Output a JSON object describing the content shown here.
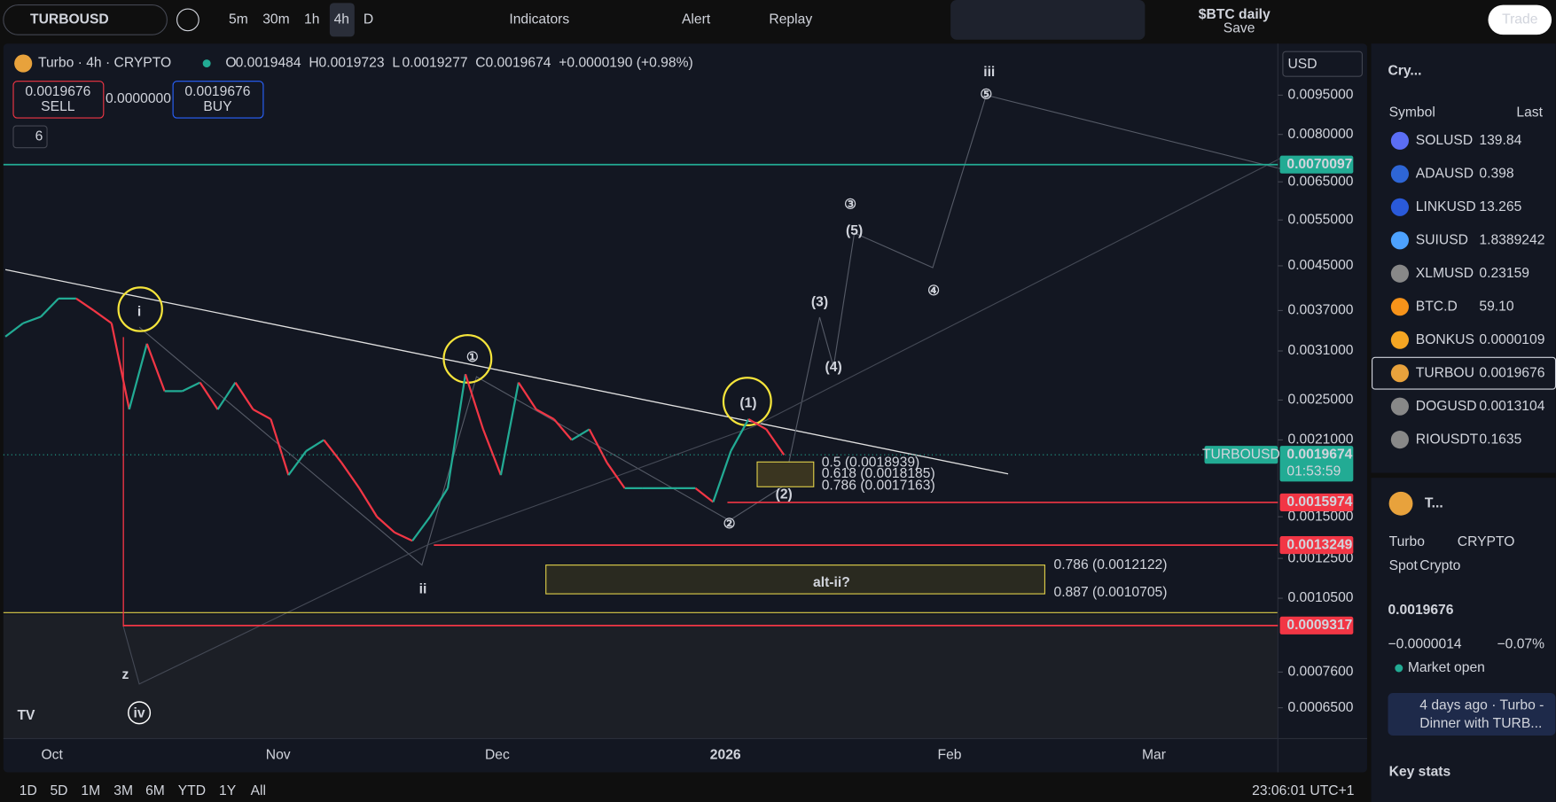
{
  "toolbar": {
    "symbol": "TURBOUSD",
    "intervals": [
      "5m",
      "30m",
      "1h",
      "4h",
      "D"
    ],
    "indicators": "Indicators",
    "alert": "Alert",
    "replay": "Replay",
    "layout": "$BTC daily",
    "save": "Save",
    "trade": "Trade"
  },
  "legend": {
    "title": "Turbo · 4h · CRYPTO",
    "ohlc": [
      {
        "label": "O",
        "value": "0.0019484"
      },
      {
        "label": "H",
        "value": "0.0019723"
      },
      {
        "label": "L",
        "value": "0.0019277"
      },
      {
        "label": "C",
        "value": "0.0019674"
      }
    ],
    "change": "+0.0000190 (+0.98%)",
    "sell": {
      "price": "0.0019676",
      "label": "SELL"
    },
    "spread": "0.0000000",
    "buy": {
      "price": "0.0019676",
      "label": "BUY"
    },
    "indicator_count": "6"
  },
  "chart": {
    "currency": "USD",
    "scale": "log",
    "ylim": [
      0.000568,
      0.01135
    ],
    "yticks": [
      {
        "value": 0.0095,
        "label": "0.0095000"
      },
      {
        "value": 0.008,
        "label": "0.0080000"
      },
      {
        "value": 0.0065,
        "label": "0.0065000"
      },
      {
        "value": 0.0055,
        "label": "0.0055000"
      },
      {
        "value": 0.0045,
        "label": "0.0045000"
      },
      {
        "value": 0.0037,
        "label": "0.0037000"
      },
      {
        "value": 0.0031,
        "label": "0.0031000"
      },
      {
        "value": 0.0025,
        "label": "0.0025000"
      },
      {
        "value": 0.0021,
        "label": "0.0021000"
      },
      {
        "value": 0.0015,
        "label": "0.0015000"
      },
      {
        "value": 0.00125,
        "label": "0.0012500"
      },
      {
        "value": 0.00105,
        "label": "0.0010500"
      },
      {
        "value": 0.00076,
        "label": "0.0007600"
      },
      {
        "value": 0.00065,
        "label": "0.0006500"
      }
    ],
    "xticks": [
      "Oct",
      "Nov",
      "Dec",
      "2026",
      "Feb",
      "Mar"
    ],
    "price_path": [
      0.0033,
      0.0035,
      0.0036,
      0.0039,
      0.0039,
      0.0037,
      0.0035,
      0.0024,
      0.0032,
      0.0026,
      0.0026,
      0.0027,
      0.0024,
      0.0027,
      0.0024,
      0.0023,
      0.0018,
      0.002,
      0.0021,
      0.0019,
      0.0017,
      0.0015,
      0.0014,
      0.00135,
      0.0015,
      0.0017,
      0.0028,
      0.0022,
      0.0018,
      0.0027,
      0.0024,
      0.0023,
      0.0021,
      0.0022,
      0.0019,
      0.0017,
      0.0017,
      0.0017,
      0.0017,
      0.0017,
      0.0016,
      0.002,
      0.0023,
      0.0022,
      0.0019674
    ],
    "levels": [
      {
        "value": 0.0070097,
        "color": "#22ab94"
      },
      {
        "value": 0.0015974,
        "color": "#f23645"
      },
      {
        "value": 0.0013249,
        "color": "#f23645"
      },
      {
        "value": 0.0009317,
        "color": "#f23645"
      }
    ],
    "last": {
      "symbol": "TURBOUSD",
      "value": 0.0019674,
      "countdown": "01:53:59"
    },
    "annotations": [
      "i",
      "①",
      "(1)",
      "ii",
      "iii",
      "⑤",
      "③",
      "(5)",
      "(3)",
      "④",
      "(4)",
      "(2)",
      "②",
      "z",
      "iv"
    ],
    "fib": [
      "0.5 (0.0018939)",
      "0.618 (0.0018185)",
      "0.786 (0.0017163)",
      "0.786 (0.0012122)",
      "0.887 (0.0010705)",
      "alt-ii?"
    ]
  },
  "bottom": {
    "ranges": [
      "1D",
      "5D",
      "1M",
      "3M",
      "6M",
      "YTD",
      "1Y",
      "All"
    ],
    "clock": "23:06:01 UTC+1"
  },
  "watchlist": {
    "title": "Cry...",
    "columns": [
      "Symbol",
      "Last"
    ],
    "rows": [
      [
        "SOLUSD",
        "139.84"
      ],
      [
        "ADAUSD",
        "0.398"
      ],
      [
        "LINKUSD",
        "13.265"
      ],
      [
        "SUIUSD",
        "1.8389242"
      ],
      [
        "XLMUSD",
        "0.23159"
      ],
      [
        "BTC.D",
        "59.10"
      ],
      [
        "BONKUS",
        "0.0000109"
      ],
      [
        "TURBOU",
        "0.0019676"
      ],
      [
        "DOGUSD",
        "0.0013104"
      ],
      [
        "RIOUSDT",
        "0.1635"
      ]
    ]
  },
  "details": {
    "short": "T...",
    "name": "Turbo",
    "exchange": "CRYPTO",
    "kind": "Spot",
    "sector": "Crypto",
    "price": "0.0019676",
    "change": "−0.0000014",
    "change_pct": "−0.07%",
    "status": "Market open",
    "news_time": "4 days ago · Turbo -",
    "news_title": "Dinner with TURB...",
    "key_stats": "Key stats"
  }
}
